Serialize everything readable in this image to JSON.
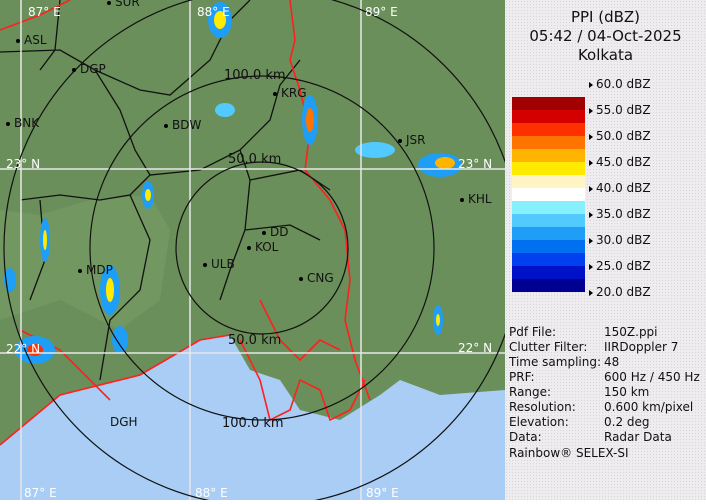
{
  "legend": {
    "title": "PPI (dBZ)",
    "datetime": "05:42 / 04-Oct-2025",
    "location": "Kolkata",
    "ticks": [
      "60.0 dBZ",
      "55.0 dBZ",
      "50.0 dBZ",
      "45.0 dBZ",
      "40.0 dBZ",
      "35.0 dBZ",
      "30.0 dBZ",
      "25.0 dBZ",
      "20.0 dBZ"
    ],
    "colors": [
      "#a00000",
      "#d40000",
      "#ff3000",
      "#ff7400",
      "#ffb400",
      "#ffea00",
      "#fff4c4",
      "#ffffff",
      "#86f0ff",
      "#52caff",
      "#1e9ef6",
      "#0070f0",
      "#0040f0",
      "#0012c8",
      "#000092"
    ]
  },
  "info": [
    {
      "key": "Pdf File:",
      "value": "150Z.ppi"
    },
    {
      "key": "Clutter Filter:",
      "value": "IIRDoppler 7"
    },
    {
      "key": "Time sampling:",
      "value": "48"
    },
    {
      "key": "PRF:",
      "value": "600 Hz / 450 Hz"
    },
    {
      "key": "Range:",
      "value": "150 km"
    },
    {
      "key": "Resolution:",
      "value": "0.600 km/pixel"
    },
    {
      "key": "Elevation:",
      "value": "0.2 deg"
    },
    {
      "key": "Data:",
      "value": "Radar Data"
    }
  ],
  "footer": "Rainbow® SELEX-SI",
  "map": {
    "cities": [
      "SUR",
      "ASL",
      "DGP",
      "BNK",
      "BDW",
      "KRG",
      "JSR",
      "KHL",
      "DD",
      "KOL",
      "ULB",
      "CNG",
      "MDP",
      "DGH"
    ],
    "grid_labels": [
      "87° E",
      "88° E",
      "89° E",
      "23° N",
      "23° N",
      "22° N",
      "22° N",
      "87° E",
      "88° E",
      "89° E"
    ],
    "range_labels": [
      "100.0 km",
      "50.0 km",
      "50.0 km",
      "100.0 km"
    ],
    "colors": {
      "land": "#6a8f5a",
      "sea": "#a9cdf5",
      "district_border": "#111111",
      "international_border": "#ff2020"
    }
  }
}
